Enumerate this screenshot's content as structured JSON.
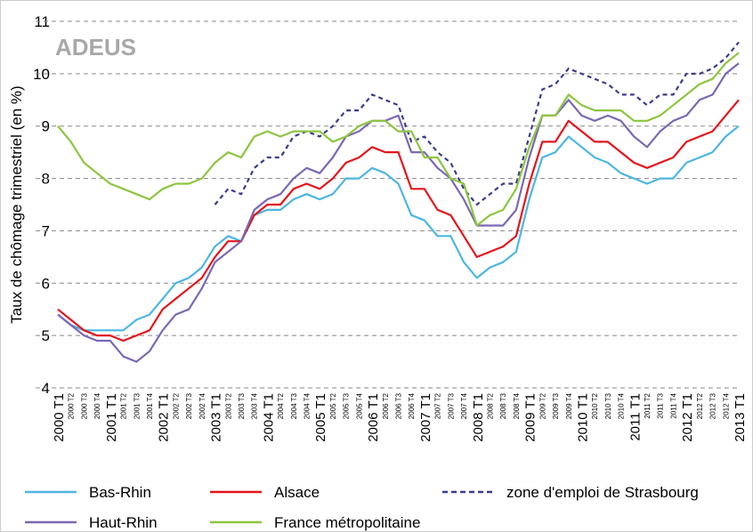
{
  "logo": "ADEUS",
  "chart_data": {
    "type": "line",
    "y_label": "Taux de chômage trimestriel (en %)",
    "categories": [
      "2000 T1",
      "2000 T2",
      "2000 T3",
      "2000 T4",
      "2001 T1",
      "2001 T2",
      "2001 T3",
      "2001 T4",
      "2002 T1",
      "2002 T2",
      "2002 T3",
      "2002 T4",
      "2003 T1",
      "2003 T2",
      "2003 T3",
      "2003 T4",
      "2004 T1",
      "2004 T2",
      "2004 T3",
      "2004 T4",
      "2005 T1",
      "2005 T2",
      "2005 T3",
      "2005 T4",
      "2006 T1",
      "2006 T2",
      "2006 T3",
      "2006 T4",
      "2007 T1",
      "2007 T2",
      "2007 T3",
      "2007 T4",
      "2008 T1",
      "2008 T2",
      "2008 T3",
      "2008 T4",
      "2009 T1",
      "2009 T2",
      "2009 T3",
      "2009 T4",
      "2010 T1",
      "2010 T2",
      "2010 T3",
      "2010 T4",
      "2011 T1",
      "2011 T2",
      "2011 T3",
      "2011 T4",
      "2012 T1",
      "2012 T2",
      "2012 T3",
      "2012 T4",
      "2013 T1"
    ],
    "series": [
      {
        "name": "Bas-Rhin",
        "color": "#4cb6e2",
        "dashed": false,
        "values": [
          5.4,
          5.2,
          5.1,
          5.1,
          5.1,
          5.1,
          5.3,
          5.4,
          5.7,
          6.0,
          6.1,
          6.3,
          6.7,
          6.9,
          6.8,
          7.3,
          7.4,
          7.4,
          7.6,
          7.7,
          7.6,
          7.7,
          8.0,
          8.0,
          8.2,
          8.1,
          7.9,
          7.3,
          7.2,
          6.9,
          6.9,
          6.4,
          6.1,
          6.3,
          6.4,
          6.6,
          7.6,
          8.4,
          8.5,
          8.8,
          8.6,
          8.4,
          8.3,
          8.1,
          8.0,
          7.9,
          8.0,
          8.0,
          8.3,
          8.4,
          8.5,
          8.8,
          9.0
        ]
      },
      {
        "name": "Alsace",
        "color": "#e3151b",
        "dashed": false,
        "values": [
          5.5,
          5.3,
          5.1,
          5.0,
          5.0,
          4.9,
          5.0,
          5.1,
          5.5,
          5.7,
          5.9,
          6.1,
          6.5,
          6.8,
          6.8,
          7.3,
          7.5,
          7.5,
          7.8,
          7.9,
          7.8,
          8.0,
          8.3,
          8.4,
          8.6,
          8.5,
          8.5,
          7.8,
          7.8,
          7.4,
          7.3,
          6.9,
          6.5,
          6.6,
          6.7,
          6.9,
          7.9,
          8.7,
          8.7,
          9.1,
          8.9,
          8.7,
          8.7,
          8.5,
          8.3,
          8.2,
          8.3,
          8.4,
          8.7,
          8.8,
          8.9,
          9.2,
          9.5
        ]
      },
      {
        "name": "zone d'emploi de Strasbourg",
        "color": "#3b3d8c",
        "dashed": true,
        "values": [
          null,
          null,
          null,
          null,
          null,
          null,
          null,
          null,
          null,
          null,
          null,
          null,
          7.5,
          7.8,
          7.7,
          8.2,
          8.4,
          8.4,
          8.8,
          8.9,
          8.8,
          9.0,
          9.3,
          9.3,
          9.6,
          9.5,
          9.4,
          8.7,
          8.8,
          8.5,
          8.3,
          7.8,
          7.5,
          7.7,
          7.9,
          7.9,
          8.8,
          9.7,
          9.8,
          10.1,
          10.0,
          9.9,
          9.8,
          9.6,
          9.6,
          9.4,
          9.6,
          9.6,
          10.0,
          10.0,
          10.1,
          10.3,
          10.6
        ]
      },
      {
        "name": "Haut-Rhin",
        "color": "#7b68b4",
        "dashed": false,
        "values": [
          5.4,
          5.2,
          5.0,
          4.9,
          4.9,
          4.6,
          4.5,
          4.7,
          5.1,
          5.4,
          5.5,
          5.9,
          6.4,
          6.6,
          6.8,
          7.4,
          7.6,
          7.7,
          8.0,
          8.2,
          8.1,
          8.4,
          8.8,
          8.9,
          9.1,
          9.1,
          9.2,
          8.5,
          8.5,
          8.2,
          8.0,
          7.6,
          7.1,
          7.1,
          7.1,
          7.4,
          8.4,
          9.2,
          9.2,
          9.5,
          9.2,
          9.1,
          9.2,
          9.1,
          8.8,
          8.6,
          8.9,
          9.1,
          9.2,
          9.5,
          9.6,
          10.0,
          10.2
        ]
      },
      {
        "name": "France métropolitaine",
        "color": "#8cc63e",
        "dashed": false,
        "values": [
          9.0,
          8.7,
          8.3,
          8.1,
          7.9,
          7.8,
          7.7,
          7.6,
          7.8,
          7.9,
          7.9,
          8.0,
          8.3,
          8.5,
          8.4,
          8.8,
          8.9,
          8.8,
          8.9,
          8.9,
          8.9,
          8.7,
          8.8,
          9.0,
          9.1,
          9.1,
          8.9,
          8.9,
          8.4,
          8.4,
          8.0,
          7.9,
          7.1,
          7.3,
          7.4,
          7.8,
          8.6,
          9.2,
          9.2,
          9.6,
          9.4,
          9.3,
          9.3,
          9.3,
          9.1,
          9.1,
          9.2,
          9.4,
          9.6,
          9.8,
          9.9,
          10.2,
          10.4
        ]
      }
    ],
    "ylim": [
      4,
      11
    ],
    "yticks": [
      4,
      5,
      6,
      7,
      8,
      9,
      10,
      11
    ],
    "grid": true
  }
}
